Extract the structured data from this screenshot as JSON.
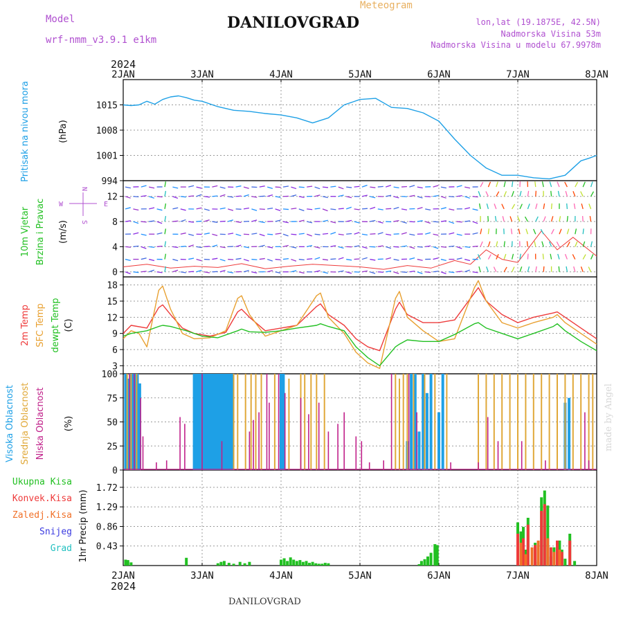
{
  "header": {
    "model_label": "Model",
    "model_name": "wrf-nmm_v3.9.1  e1km",
    "title": "DANILOVGRAD",
    "meteogram_label": "Meteogram",
    "lonlat": "lon,lat (19.1875E, 42.5N)",
    "altitude": "Nadmorska Visina 53m",
    "model_altitude": "Nadmorska Visina u modelu 67.9978m",
    "year_top": "2024",
    "year_bottom": "2024",
    "footer_title": "DANILOVGRAD",
    "watermark": "made by Angel"
  },
  "colors": {
    "pressure": "#1ea0e6",
    "wind_label": "#22c022",
    "temp2m": "#ee3a3a",
    "sfc": "#e8a030",
    "dewpt": "#22c022",
    "high_cloud": "#1ea0e6",
    "mid_cloud": "#e0a838",
    "low_cloud": "#c0208a",
    "rain_total": "#22c022",
    "rain_conv": "#ee3a3a",
    "rain_strat": "#f07028",
    "snow": "#3a3ae0",
    "graupel": "#22c0c0",
    "header_purple": "#b050d0",
    "header_orange": "#e8b060"
  },
  "chart_data": [
    {
      "type": "line",
      "panel": "pressure",
      "ylabel_left": "Pritisak na nivou mora",
      "ylabel_unit": "(hPa)",
      "x_categories": [
        "2JAN",
        "3JAN",
        "4JAN",
        "5JAN",
        "6JAN",
        "7JAN",
        "8JAN"
      ],
      "ylim": [
        994,
        1022
      ],
      "yticks": [
        994,
        1001,
        1008,
        1015
      ],
      "grid": true,
      "series": [
        {
          "x": [
            0,
            0.1,
            0.2,
            0.3,
            0.4,
            0.5,
            0.6,
            0.7,
            0.8,
            0.9,
            1.0,
            1.2,
            1.4,
            1.6,
            1.8,
            2.0,
            2.2,
            2.4,
            2.6,
            2.8,
            3.0,
            3.2,
            3.4,
            3.6,
            3.8,
            4.0,
            4.2,
            4.4,
            4.6,
            4.8,
            5.0,
            5.2,
            5.4,
            5.6,
            5.8,
            5.9,
            6.0
          ],
          "values": [
            1015,
            1014.8,
            1015,
            1016,
            1015.2,
            1016.5,
            1017.2,
            1017.5,
            1017,
            1016.3,
            1016,
            1014.5,
            1013.5,
            1013.2,
            1012.6,
            1012.2,
            1011.4,
            1010,
            1011.4,
            1015,
            1016.5,
            1016.8,
            1014.3,
            1014,
            1012.8,
            1010.5,
            1005.5,
            1001,
            997.5,
            995.5,
            995.5,
            994.8,
            994.5,
            995.5,
            999.5,
            1000.2,
            1001
          ]
        }
      ]
    },
    {
      "type": "scatter",
      "panel": "wind",
      "ylabel_left": "10m Vjetar",
      "ylabel_left2": "Brzina i Pravac",
      "ylabel_unit": "(m/s)",
      "compass": {
        "n": "N",
        "w": "W",
        "e": "E",
        "s": "S"
      },
      "ylim": [
        -0.8,
        14.5
      ],
      "yticks": [
        0,
        4,
        8,
        12
      ],
      "grid": true,
      "series": [
        {
          "name": "wind speed",
          "x": [
            0,
            0.3,
            0.6,
            0.9,
            1.2,
            1.5,
            1.8,
            2.1,
            2.4,
            2.7,
            3.0,
            3.3,
            3.6,
            3.9,
            4.2,
            4.4,
            4.6,
            4.8,
            5.0,
            5.3,
            5.5,
            5.7,
            6.0
          ],
          "values": [
            0.8,
            1.2,
            0.6,
            0.9,
            0.7,
            1.3,
            0.5,
            0.9,
            1.2,
            1.0,
            0.8,
            0.4,
            1.0,
            0.6,
            1.8,
            1.2,
            3.5,
            2.0,
            1.5,
            6.5,
            3.5,
            5.5,
            2.5
          ]
        }
      ]
    },
    {
      "type": "line",
      "panel": "temperature",
      "ylabel_left": "2m Temp",
      "ylabel_left2": "SFC Temp",
      "ylabel_left3": "dewpt Temp",
      "ylabel_unit": "(C)",
      "ylim": [
        1.5,
        19.5
      ],
      "yticks": [
        3,
        6,
        9,
        12,
        15,
        18
      ],
      "grid": true,
      "series": [
        {
          "name": "2m Temp",
          "x": [
            0,
            0.1,
            0.3,
            0.45,
            0.5,
            0.6,
            0.75,
            0.9,
            1.1,
            1.3,
            1.45,
            1.5,
            1.6,
            1.8,
            2.0,
            2.2,
            2.45,
            2.5,
            2.6,
            2.8,
            2.95,
            3.1,
            3.25,
            3.45,
            3.5,
            3.6,
            3.8,
            4.0,
            4.2,
            4.45,
            4.5,
            4.6,
            4.8,
            5.0,
            5.2,
            5.45,
            5.5,
            5.6,
            5.8,
            6.0
          ],
          "values": [
            9,
            10.5,
            10,
            13.8,
            14.3,
            12.5,
            10,
            9,
            8.5,
            9.2,
            13,
            13.5,
            12,
            9.5,
            10,
            10.5,
            14,
            14.5,
            12.5,
            10.5,
            8,
            6.5,
            5.8,
            13.5,
            14.8,
            12.5,
            11,
            11,
            11.5,
            16.5,
            17.5,
            15,
            12.5,
            11,
            12,
            12.8,
            13,
            12,
            10,
            8
          ]
        },
        {
          "name": "SFC Temp",
          "x": [
            0,
            0.1,
            0.2,
            0.3,
            0.45,
            0.5,
            0.6,
            0.75,
            0.9,
            1.1,
            1.3,
            1.45,
            1.5,
            1.6,
            1.8,
            2.0,
            2.2,
            2.45,
            2.5,
            2.6,
            2.8,
            2.95,
            3.1,
            3.25,
            3.45,
            3.5,
            3.6,
            3.8,
            4.0,
            4.2,
            4.45,
            4.5,
            4.6,
            4.8,
            5.0,
            5.2,
            5.45,
            5.5,
            5.6,
            5.8,
            6.0
          ],
          "values": [
            8,
            9.5,
            9,
            6.5,
            17,
            17.8,
            13.5,
            9,
            8,
            8.2,
            9.5,
            15.5,
            16,
            12.5,
            8.5,
            9.5,
            10.5,
            16,
            16.5,
            12,
            9,
            5.5,
            3.5,
            2.5,
            15.5,
            16.8,
            12,
            9.5,
            7.5,
            8,
            17.5,
            18.8,
            15,
            11,
            10,
            11,
            12,
            12.5,
            11,
            9,
            7
          ]
        },
        {
          "name": "dewpt Temp",
          "x": [
            0,
            0.1,
            0.3,
            0.45,
            0.5,
            0.6,
            0.8,
            1.0,
            1.2,
            1.45,
            1.5,
            1.6,
            1.8,
            2.0,
            2.2,
            2.45,
            2.5,
            2.6,
            2.8,
            2.95,
            3.1,
            3.25,
            3.45,
            3.5,
            3.6,
            3.8,
            4.0,
            4.2,
            4.45,
            4.5,
            4.6,
            4.8,
            5.0,
            5.2,
            5.45,
            5.5,
            5.6,
            5.8,
            6.0
          ],
          "values": [
            8.5,
            9,
            9.5,
            10.3,
            10.5,
            10.3,
            9.5,
            8.5,
            8.2,
            9.5,
            9.8,
            9.3,
            9.2,
            9.5,
            10,
            10.5,
            10.8,
            10.3,
            9.5,
            6.5,
            4.5,
            3,
            6.5,
            7,
            7.8,
            7.5,
            7.5,
            8.8,
            10.8,
            11,
            10,
            9,
            8,
            9,
            10.3,
            10.8,
            9.5,
            7.5,
            5.8
          ]
        }
      ]
    },
    {
      "type": "bar",
      "panel": "clouds",
      "ylabel_left": "Visoka Oblacnost",
      "ylabel_left2": "Srednja Oblacnost",
      "ylabel_left3": "Niska Oblacnost",
      "ylabel_unit": "(%)",
      "ylim": [
        0,
        100
      ],
      "yticks": [
        0,
        25,
        50,
        75,
        100
      ],
      "grid": true,
      "series": [
        {
          "name": "Visoka Oblacnost",
          "x": [
            0.03,
            0.06,
            0.09,
            0.12,
            0.15,
            0.18,
            0.21,
            0.9,
            0.93,
            0.96,
            0.99,
            1.02,
            1.05,
            1.08,
            1.11,
            1.14,
            1.17,
            1.2,
            1.23,
            1.26,
            1.29,
            1.32,
            1.35,
            1.38,
            2.0,
            2.03,
            3.6,
            3.65,
            3.7,
            3.75,
            3.8,
            3.85,
            3.9,
            4.0,
            4.05,
            5.6,
            5.65
          ],
          "values": [
            100,
            95,
            100,
            100,
            100,
            100,
            90,
            100,
            100,
            100,
            100,
            100,
            100,
            100,
            100,
            100,
            100,
            100,
            100,
            100,
            100,
            100,
            100,
            100,
            100,
            100,
            30,
            100,
            100,
            40,
            100,
            80,
            100,
            60,
            100,
            70,
            75
          ]
        },
        {
          "name": "Srednja Oblacnost",
          "x": [
            0.05,
            0.1,
            0.17,
            1.4,
            1.45,
            1.55,
            1.62,
            1.68,
            1.75,
            1.92,
            2.1,
            2.25,
            2.3,
            2.38,
            2.45,
            2.55,
            3.45,
            3.5,
            3.55,
            3.6,
            3.68,
            3.82,
            3.95,
            4.1,
            4.5,
            4.6,
            4.7,
            4.8,
            4.9,
            5.0,
            5.1,
            5.2,
            5.3,
            5.4,
            5.5,
            5.6,
            5.7,
            5.8,
            5.9,
            5.95
          ],
          "values": [
            100,
            100,
            100,
            100,
            100,
            100,
            100,
            100,
            100,
            100,
            95,
            100,
            100,
            100,
            100,
            100,
            100,
            95,
            100,
            100,
            100,
            100,
            100,
            100,
            100,
            100,
            100,
            100,
            100,
            100,
            100,
            100,
            100,
            100,
            100,
            100,
            100,
            100,
            100,
            100
          ]
        },
        {
          "name": "Niska Oblacnost",
          "x": [
            0.08,
            0.14,
            0.22,
            0.25,
            0.42,
            0.55,
            0.72,
            0.78,
            1.0,
            1.25,
            1.6,
            1.65,
            1.72,
            1.82,
            1.85,
            1.97,
            2.05,
            2.25,
            2.35,
            2.48,
            2.6,
            2.72,
            2.8,
            2.95,
            3.02,
            3.12,
            3.3,
            3.4,
            3.62,
            3.72,
            4.15,
            4.5,
            4.62,
            4.75,
            5.05,
            5.35,
            5.85,
            5.9
          ],
          "values": [
            100,
            100,
            75,
            35,
            8,
            10,
            55,
            48,
            100,
            30,
            40,
            52,
            60,
            100,
            70,
            100,
            80,
            75,
            58,
            70,
            40,
            48,
            60,
            35,
            30,
            8,
            10,
            100,
            100,
            60,
            8,
            8,
            55,
            30,
            30,
            10,
            60,
            10
          ]
        }
      ]
    },
    {
      "type": "bar",
      "panel": "precipitation",
      "legend": [
        "Ukupna Kisa",
        "Konvek.Kisa",
        "Zaledj.Kisa",
        "Snijeg",
        "Grad"
      ],
      "ylabel_unit": "1hr Precip (mm)",
      "ylim": [
        0,
        2.1
      ],
      "yticks": [
        0.43,
        0.86,
        1.29,
        1.72
      ],
      "grid": true,
      "x_categories": [
        "2JAN",
        "3JAN",
        "4JAN",
        "5JAN",
        "6JAN",
        "7JAN",
        "8JAN"
      ],
      "series": [
        {
          "name": "Ukupna Kisa",
          "x": [
            0.03,
            0.06,
            0.1,
            0.8,
            1.2,
            1.24,
            1.28,
            1.34,
            1.4,
            1.48,
            1.54,
            1.6,
            2.0,
            2.04,
            2.08,
            2.12,
            2.16,
            2.2,
            2.24,
            2.28,
            2.32,
            2.36,
            2.4,
            2.44,
            2.48,
            2.52,
            2.56,
            2.6,
            3.75,
            3.78,
            3.82,
            3.86,
            3.9,
            3.95,
            3.98,
            5.0,
            5.04,
            5.07,
            5.1,
            5.13,
            5.18,
            5.22,
            5.26,
            5.3,
            5.34,
            5.38,
            5.42,
            5.46,
            5.5,
            5.53,
            5.56,
            5.6,
            5.66,
            5.72
          ],
          "values": [
            0.13,
            0.12,
            0.07,
            0.17,
            0.05,
            0.08,
            0.1,
            0.06,
            0.04,
            0.08,
            0.05,
            0.08,
            0.13,
            0.16,
            0.1,
            0.18,
            0.13,
            0.1,
            0.12,
            0.08,
            0.1,
            0.06,
            0.08,
            0.05,
            0.04,
            0.04,
            0.06,
            0.05,
            0.03,
            0.1,
            0.14,
            0.2,
            0.28,
            0.47,
            0.45,
            0.95,
            0.75,
            0.85,
            0.35,
            1.05,
            0.05,
            0.5,
            0.08,
            1.5,
            1.65,
            1.32,
            0.2,
            0.4,
            0.5,
            0.55,
            0.35,
            0.15,
            0.7,
            0.1
          ]
        },
        {
          "name": "Konvek.Kisa",
          "x": [
            5.0,
            5.07,
            5.13,
            5.22,
            5.3,
            5.34,
            5.42,
            5.5,
            5.56,
            5.66
          ],
          "values": [
            0.7,
            0.6,
            0.9,
            0.45,
            1.2,
            1.35,
            0.4,
            0.55,
            0.3,
            0.55
          ]
        },
        {
          "name": "Zaledj.Kisa",
          "x": [
            5.04,
            5.1,
            5.18,
            5.26,
            5.38,
            5.46,
            5.53
          ],
          "values": [
            0.5,
            0.25,
            0.4,
            0.55,
            0.6,
            0.3,
            0.35
          ]
        }
      ]
    }
  ]
}
